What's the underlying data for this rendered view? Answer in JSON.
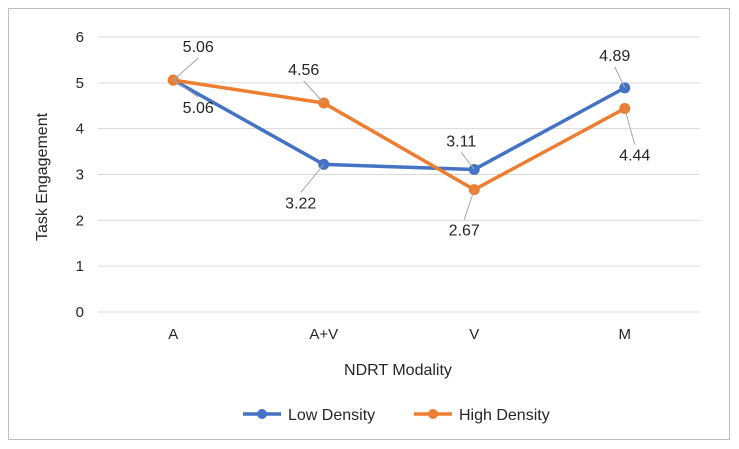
{
  "chart_data": {
    "type": "line",
    "categories": [
      "A",
      "A+V",
      "V",
      "M"
    ],
    "ylim": [
      0,
      6
    ],
    "yticks": [
      0,
      1,
      2,
      3,
      4,
      5,
      6
    ],
    "xlabel": "NDRT Modality",
    "ylabel": "Task Engagement",
    "grid": true,
    "legend": "bottom",
    "series": [
      {
        "name": "Low Density",
        "color": "#4472c4",
        "values": [
          5.06,
          3.22,
          3.11,
          4.89
        ],
        "labels": [
          "5.06",
          "3.22",
          "3.11",
          "4.89"
        ]
      },
      {
        "name": "High Density",
        "color": "#ed7d31",
        "values": [
          5.06,
          4.56,
          2.67,
          4.44
        ],
        "labels": [
          "5.06",
          "4.56",
          "2.67",
          "4.44"
        ]
      }
    ]
  }
}
